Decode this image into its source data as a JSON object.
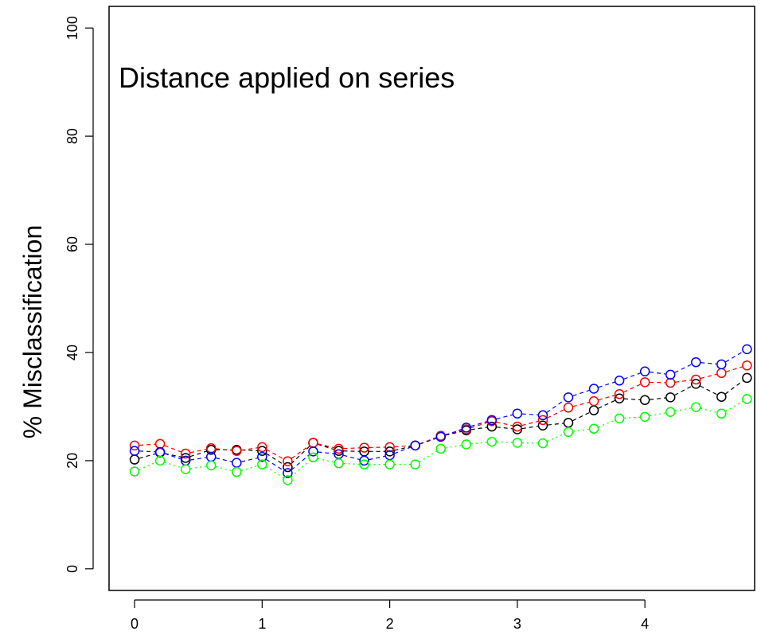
{
  "chart_data": {
    "type": "line",
    "title": "",
    "annotation": "Distance applied on series",
    "xlabel": "",
    "ylabel": "% Misclassification",
    "xlim": [
      -0.2,
      4.86
    ],
    "ylim": [
      -4,
      104
    ],
    "xticks": [
      "0",
      "1",
      "2",
      "3",
      "4"
    ],
    "yticks": [
      "0",
      "20",
      "40",
      "60",
      "80",
      "100"
    ],
    "x": [
      0,
      0.2,
      0.4,
      0.6,
      0.8,
      1.0,
      1.2,
      1.4,
      1.6,
      1.8,
      2.0,
      2.2,
      2.4,
      2.6,
      2.8,
      3.0,
      3.2,
      3.4,
      3.6,
      3.8,
      4.0,
      4.2,
      4.4,
      4.6,
      4.8
    ],
    "series": [
      {
        "color": "#000000",
        "marker": "open-circle",
        "line_style": "dashed",
        "values": [
          20.2,
          21.5,
          20.5,
          22.0,
          22.0,
          21.8,
          18.8,
          23.3,
          21.8,
          21.7,
          21.7,
          22.8,
          24.5,
          25.6,
          26.3,
          25.8,
          26.5,
          27.0,
          29.3,
          31.5,
          31.2,
          31.7,
          34.2,
          31.8,
          35.3
        ]
      },
      {
        "color": "#ff0000",
        "marker": "open-circle",
        "line_style": "dashed",
        "values": [
          22.8,
          23.1,
          21.3,
          22.3,
          21.8,
          22.5,
          19.9,
          23.3,
          22.2,
          22.4,
          22.5,
          22.8,
          24.6,
          25.8,
          27.3,
          26.3,
          27.5,
          29.8,
          31.0,
          32.3,
          34.5,
          34.4,
          35.0,
          36.2,
          37.6
        ]
      },
      {
        "color": "#0000ff",
        "marker": "open-circle",
        "line_style": "dashed",
        "values": [
          21.8,
          21.6,
          20.0,
          20.7,
          19.6,
          20.7,
          17.7,
          21.7,
          21.2,
          20.0,
          21.0,
          22.8,
          24.4,
          26.1,
          27.5,
          28.7,
          28.4,
          31.7,
          33.3,
          34.8,
          36.5,
          35.9,
          38.2,
          37.8,
          40.6
        ]
      },
      {
        "color": "#00ff00",
        "marker": "open-circle",
        "line_style": "dotted",
        "values": [
          18.0,
          20.0,
          18.4,
          19.1,
          17.9,
          19.3,
          16.4,
          20.6,
          19.5,
          19.3,
          19.3,
          19.3,
          22.2,
          23.0,
          23.5,
          23.3,
          23.2,
          25.3,
          25.9,
          27.8,
          28.1,
          29.0,
          29.9,
          28.7,
          31.4
        ]
      }
    ],
    "grid": false,
    "legend": "none"
  }
}
